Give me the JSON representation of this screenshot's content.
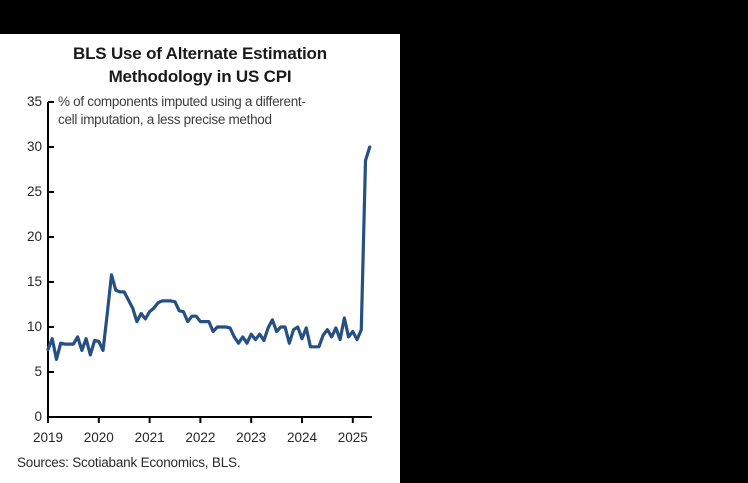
{
  "window": {
    "top_bar_color": "#000000",
    "panel_color": "#ffffff",
    "side_region_color": "#000000"
  },
  "chart": {
    "title_line1": "BLS Use of Alternate Estimation",
    "title_line2": "Methodology in US CPI",
    "subtitle_line1": "% of components imputed using a different-",
    "subtitle_line2": "cell imputation, a less precise method",
    "source": "Sources: Scotiabank Economics, BLS."
  },
  "colors": {
    "line": "#264F82",
    "axis": "#000000",
    "title_text": "#1a1a1a",
    "subtitle_text": "#3d3d3d",
    "tick_text": "#262626"
  },
  "chart_data": {
    "type": "line",
    "title": "BLS Use of Alternate Estimation Methodology in US CPI",
    "subtitle": "% of components imputed using a different-cell imputation, a less precise method",
    "source": "Sources: Scotiabank Economics, BLS.",
    "frequency": "monthly",
    "x_start": "2019-01",
    "x_end": "2025-05",
    "x_tick_labels": [
      "2019",
      "2020",
      "2021",
      "2022",
      "2023",
      "2024",
      "2025"
    ],
    "y_ticks": [
      0,
      5,
      10,
      15,
      20,
      25,
      30,
      35
    ],
    "ylim": [
      0,
      35
    ],
    "grid": false,
    "legend": "none",
    "series": [
      {
        "name": "% of CPI components imputed using different-cell imputation",
        "color": "#264F82",
        "values": [
          7.5,
          8.7,
          6.4,
          8.2,
          8.1,
          8.1,
          8.1,
          8.9,
          7.4,
          8.7,
          6.9,
          8.5,
          8.4,
          7.4,
          11.5,
          15.8,
          14.1,
          13.9,
          13.9,
          13.0,
          12.1,
          10.6,
          11.5,
          10.9,
          11.7,
          12.1,
          12.7,
          12.9,
          12.9,
          12.9,
          12.8,
          11.8,
          11.7,
          10.6,
          11.2,
          11.2,
          10.6,
          10.6,
          10.6,
          9.5,
          10.0,
          10.0,
          10.0,
          9.9,
          8.9,
          8.2,
          8.9,
          8.2,
          9.2,
          8.6,
          9.2,
          8.5,
          9.9,
          10.8,
          9.5,
          10.0,
          10.0,
          8.2,
          9.7,
          10.0,
          8.7,
          9.9,
          7.8,
          7.8,
          7.8,
          9.1,
          9.7,
          8.9,
          9.9,
          8.6,
          11.0,
          8.9,
          9.5,
          8.6,
          9.7,
          28.5,
          30.0
        ]
      }
    ]
  }
}
